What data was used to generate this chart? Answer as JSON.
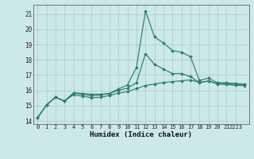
{
  "xlabel": "Humidex (Indice chaleur)",
  "ylim": [
    13.8,
    21.6
  ],
  "xlim": [
    -0.5,
    23.5
  ],
  "yticks": [
    14,
    15,
    16,
    17,
    18,
    19,
    20,
    21
  ],
  "xtick_labels": [
    "0",
    "1",
    "2",
    "3",
    "4",
    "5",
    "6",
    "7",
    "8",
    "9",
    "10",
    "11",
    "12",
    "13",
    "14",
    "15",
    "16",
    "17",
    "18",
    "19",
    "20",
    "21",
    "2223"
  ],
  "xtick_positions": [
    0,
    1,
    2,
    3,
    4,
    5,
    6,
    7,
    8,
    9,
    10,
    11,
    12,
    13,
    14,
    15,
    16,
    17,
    18,
    19,
    20,
    21,
    22
  ],
  "bg_color": "#cce8e8",
  "grid_color": "#aacccc",
  "line_color": "#2e7d6e",
  "curve_max": [
    14.2,
    15.05,
    15.55,
    15.3,
    15.85,
    15.8,
    15.75,
    15.75,
    15.8,
    16.1,
    16.35,
    17.5,
    21.2,
    19.5,
    19.1,
    18.6,
    18.5,
    18.2,
    16.65,
    16.8,
    16.5,
    16.5,
    16.45,
    16.4
  ],
  "curve_mid": [
    14.2,
    15.05,
    15.55,
    15.3,
    15.82,
    15.75,
    15.65,
    15.7,
    15.8,
    16.0,
    16.15,
    16.5,
    18.4,
    17.7,
    17.4,
    17.1,
    17.1,
    16.9,
    16.5,
    16.6,
    16.45,
    16.45,
    16.4,
    16.38
  ],
  "curve_min": [
    14.2,
    15.05,
    15.55,
    15.3,
    15.72,
    15.62,
    15.52,
    15.55,
    15.67,
    15.82,
    15.92,
    16.12,
    16.32,
    16.42,
    16.52,
    16.57,
    16.63,
    16.68,
    16.53,
    16.62,
    16.42,
    16.38,
    16.33,
    16.32
  ]
}
